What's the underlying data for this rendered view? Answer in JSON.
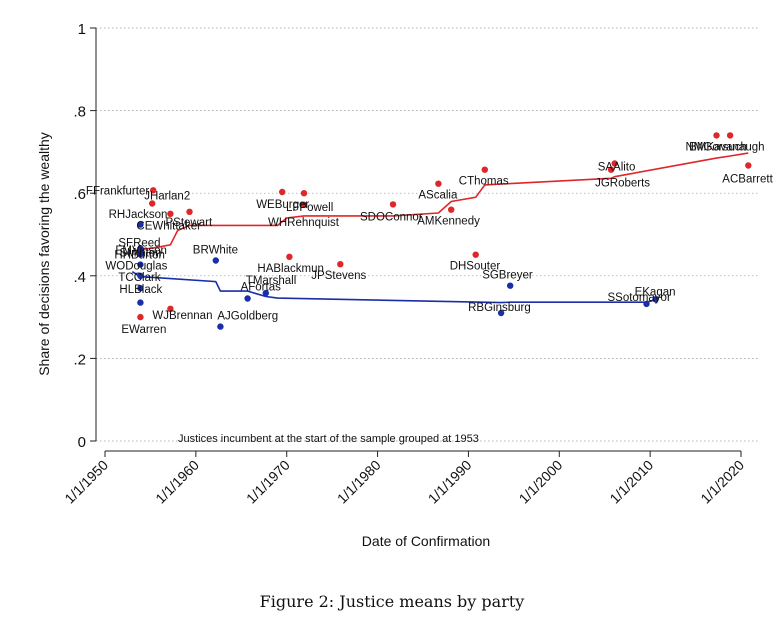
{
  "caption": "Figure 2: Justice means by party",
  "chart_data": {
    "type": "scatter",
    "xlabel": "Date of Confirmation",
    "ylabel": "Share of decisions favoring the wealthy",
    "xlim": [
      1950,
      2022
    ],
    "ylim": [
      0,
      1
    ],
    "x_ticks": [
      {
        "value": 1950,
        "label": "1/1/1950"
      },
      {
        "value": 1960,
        "label": "1/1/1960"
      },
      {
        "value": 1970,
        "label": "1/1/1970"
      },
      {
        "value": 1980,
        "label": "1/1/1980"
      },
      {
        "value": 1990,
        "label": "1/1/1990"
      },
      {
        "value": 2000,
        "label": "1/1/2000"
      },
      {
        "value": 2010,
        "label": "1/1/2010"
      },
      {
        "value": 2020,
        "label": "1/1/2020"
      }
    ],
    "y_ticks": [
      {
        "value": 0,
        "label": "0"
      },
      {
        "value": 0.2,
        "label": ".2"
      },
      {
        "value": 0.4,
        "label": ".4"
      },
      {
        "value": 0.6,
        "label": ".6"
      },
      {
        "value": 0.8,
        "label": ".8"
      },
      {
        "value": 1,
        "label": "1"
      }
    ],
    "grid": true,
    "colors": {
      "republican": "#e0262a",
      "democrat": "#1a2ea8"
    },
    "annotation": "Justices incumbent at the start of the sample grouped at 1953",
    "series": [
      {
        "party": "republican",
        "points": [
          {
            "label": "FFrankfurter",
            "x": 1955.3,
            "y": 0.607
          },
          {
            "label": "JHarlan2",
            "x": 1955.2,
            "y": 0.575
          },
          {
            "label": "RHJackson",
            "x": 1957.2,
            "y": 0.55
          },
          {
            "label": "PStewart",
            "x": 1959.3,
            "y": 0.555
          },
          {
            "label": "WEBurger",
            "x": 1969.5,
            "y": 0.603
          },
          {
            "label": "LFPowell",
            "x": 1971.9,
            "y": 0.6
          },
          {
            "label": "WHRehnquist",
            "x": 1971.9,
            "y": 0.572
          },
          {
            "label": "HABlackmun",
            "x": 1970.3,
            "y": 0.446
          },
          {
            "label": "JPStevens",
            "x": 1975.9,
            "y": 0.428
          },
          {
            "label": "SDOConnor",
            "x": 1981.7,
            "y": 0.573
          },
          {
            "label": "AScalia",
            "x": 1986.7,
            "y": 0.623
          },
          {
            "label": "AMKennedy",
            "x": 1988.1,
            "y": 0.56
          },
          {
            "label": "CThomas",
            "x": 1991.8,
            "y": 0.657
          },
          {
            "label": "DHSouter",
            "x": 1990.8,
            "y": 0.451
          },
          {
            "label": "SAAlito",
            "x": 2006.1,
            "y": 0.672
          },
          {
            "label": "JGRoberts",
            "x": 2005.7,
            "y": 0.657
          },
          {
            "label": "NMGorsuch",
            "x": 2017.3,
            "y": 0.74
          },
          {
            "label": "BMKavanaugh",
            "x": 2018.8,
            "y": 0.74
          },
          {
            "label": "ACBarrett",
            "x": 2020.8,
            "y": 0.667
          },
          {
            "label": "WJBrennan",
            "x": 1957.2,
            "y": 0.32
          },
          {
            "label": "EWarren",
            "x": 1953.9,
            "y": 0.3
          }
        ],
        "trend": [
          [
            1953,
            0.46
          ],
          [
            1956,
            0.47
          ],
          [
            1957.2,
            0.475
          ],
          [
            1958,
            0.51
          ],
          [
            1959.3,
            0.522
          ],
          [
            1969,
            0.522
          ],
          [
            1970,
            0.54
          ],
          [
            1971.9,
            0.545
          ],
          [
            1981.7,
            0.545
          ],
          [
            1986.7,
            0.552
          ],
          [
            1988.1,
            0.58
          ],
          [
            1990.8,
            0.59
          ],
          [
            1991.8,
            0.62
          ],
          [
            2005.7,
            0.636
          ],
          [
            2006.1,
            0.64
          ],
          [
            2017.3,
            0.685
          ],
          [
            2018.8,
            0.69
          ],
          [
            2020.8,
            0.697
          ]
        ]
      },
      {
        "party": "democrat",
        "points": [
          {
            "label": "CEWhittaker",
            "x": 1953.9,
            "y": 0.524
          },
          {
            "label": "SFReed",
            "x": 1953.9,
            "y": 0.466
          },
          {
            "label": "HHBurton",
            "x": 1953.9,
            "y": 0.452
          },
          {
            "label": "FMVinson",
            "x": 1953.9,
            "y": 0.462
          },
          {
            "label": "SMinton",
            "x": 1953.9,
            "y": 0.457
          },
          {
            "label": "WODouglas",
            "x": 1953.9,
            "y": 0.427
          },
          {
            "label": "TCClark",
            "x": 1953.9,
            "y": 0.4
          },
          {
            "label": "HLBlack",
            "x": 1953.9,
            "y": 0.37
          },
          {
            "label": "",
            "x": 1953.9,
            "y": 0.335
          },
          {
            "label": "BRWhite",
            "x": 1962.2,
            "y": 0.437
          },
          {
            "label": "AJGoldberg",
            "x": 1962.7,
            "y": 0.277
          },
          {
            "label": "AFortas",
            "x": 1965.7,
            "y": 0.345
          },
          {
            "label": "TMarshall",
            "x": 1967.7,
            "y": 0.358
          },
          {
            "label": "RBGinsburg",
            "x": 1993.6,
            "y": 0.31
          },
          {
            "label": "SGBreyer",
            "x": 1994.6,
            "y": 0.376
          },
          {
            "label": "SSotomayor",
            "x": 2009.6,
            "y": 0.332
          },
          {
            "label": "EKagan",
            "x": 2010.6,
            "y": 0.343
          }
        ],
        "trend": [
          [
            1953,
            0.41
          ],
          [
            1953.9,
            0.398
          ],
          [
            1962.2,
            0.386
          ],
          [
            1962.7,
            0.363
          ],
          [
            1965.7,
            0.363
          ],
          [
            1967.7,
            0.35
          ],
          [
            1969,
            0.346
          ],
          [
            1993.6,
            0.335
          ],
          [
            1994.6,
            0.336
          ],
          [
            2009.6,
            0.336
          ],
          [
            2010.6,
            0.342
          ]
        ]
      }
    ]
  }
}
